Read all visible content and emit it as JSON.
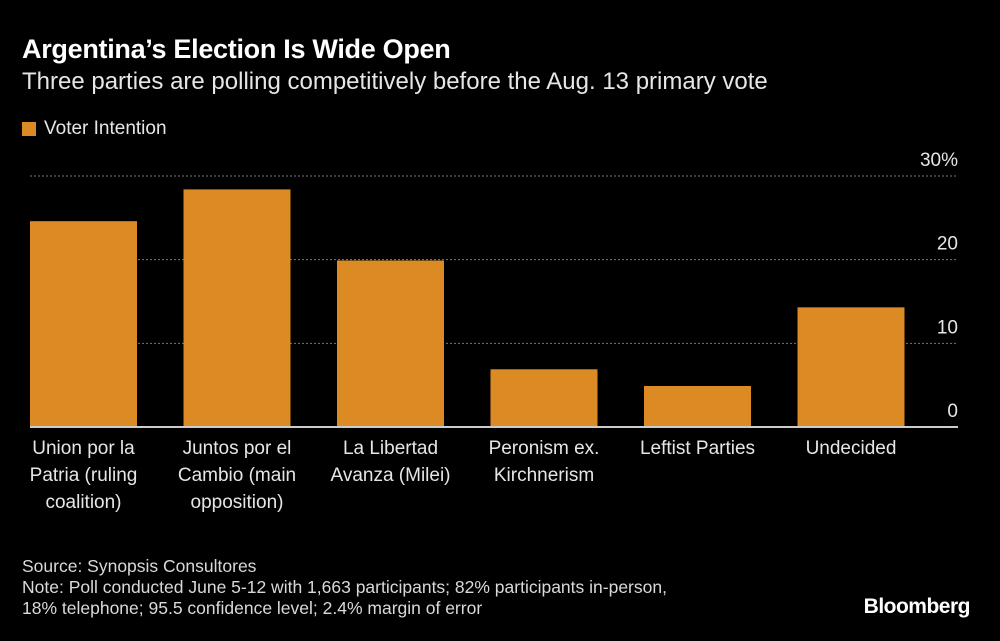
{
  "title": "Argentina’s Election Is Wide Open",
  "subtitle": "Three parties are polling competitively before the Aug. 13 primary vote",
  "source": "Source: Synopsis Consultores",
  "note_lines": [
    "Note: Poll conducted June 5-12 with 1,663 participants; 82% participants in-person,",
    "18% telephone; 95.5 confidence level; 2.4% margin of error"
  ],
  "logo": "Bloomberg",
  "chart_data": {
    "type": "bar",
    "title": "Argentina’s Election Is Wide Open",
    "subtitle": "Three parties are polling competitively before the Aug. 13 primary vote",
    "categories": [
      [
        "Union por la",
        "Patria (ruling",
        "coalition)"
      ],
      [
        "Juntos por el",
        "Cambio (main",
        "opposition)"
      ],
      [
        "La Libertad",
        "Avanza (Milei)"
      ],
      [
        "Peronism ex.",
        "Kirchnerism"
      ],
      [
        "Leftist Parties"
      ],
      [
        "Undecided"
      ]
    ],
    "series": [
      {
        "name": "Voter Intention",
        "values": [
          24.6,
          28.4,
          19.9,
          6.9,
          4.9,
          14.3
        ],
        "color": "#dc8a23"
      }
    ],
    "ylim": [
      0,
      30
    ],
    "yticks": [
      "0",
      "10",
      "20",
      "30%"
    ],
    "ytick_values": [
      0,
      10,
      20,
      30
    ],
    "grid": true,
    "legend": "top-left",
    "axis_side": "right"
  }
}
